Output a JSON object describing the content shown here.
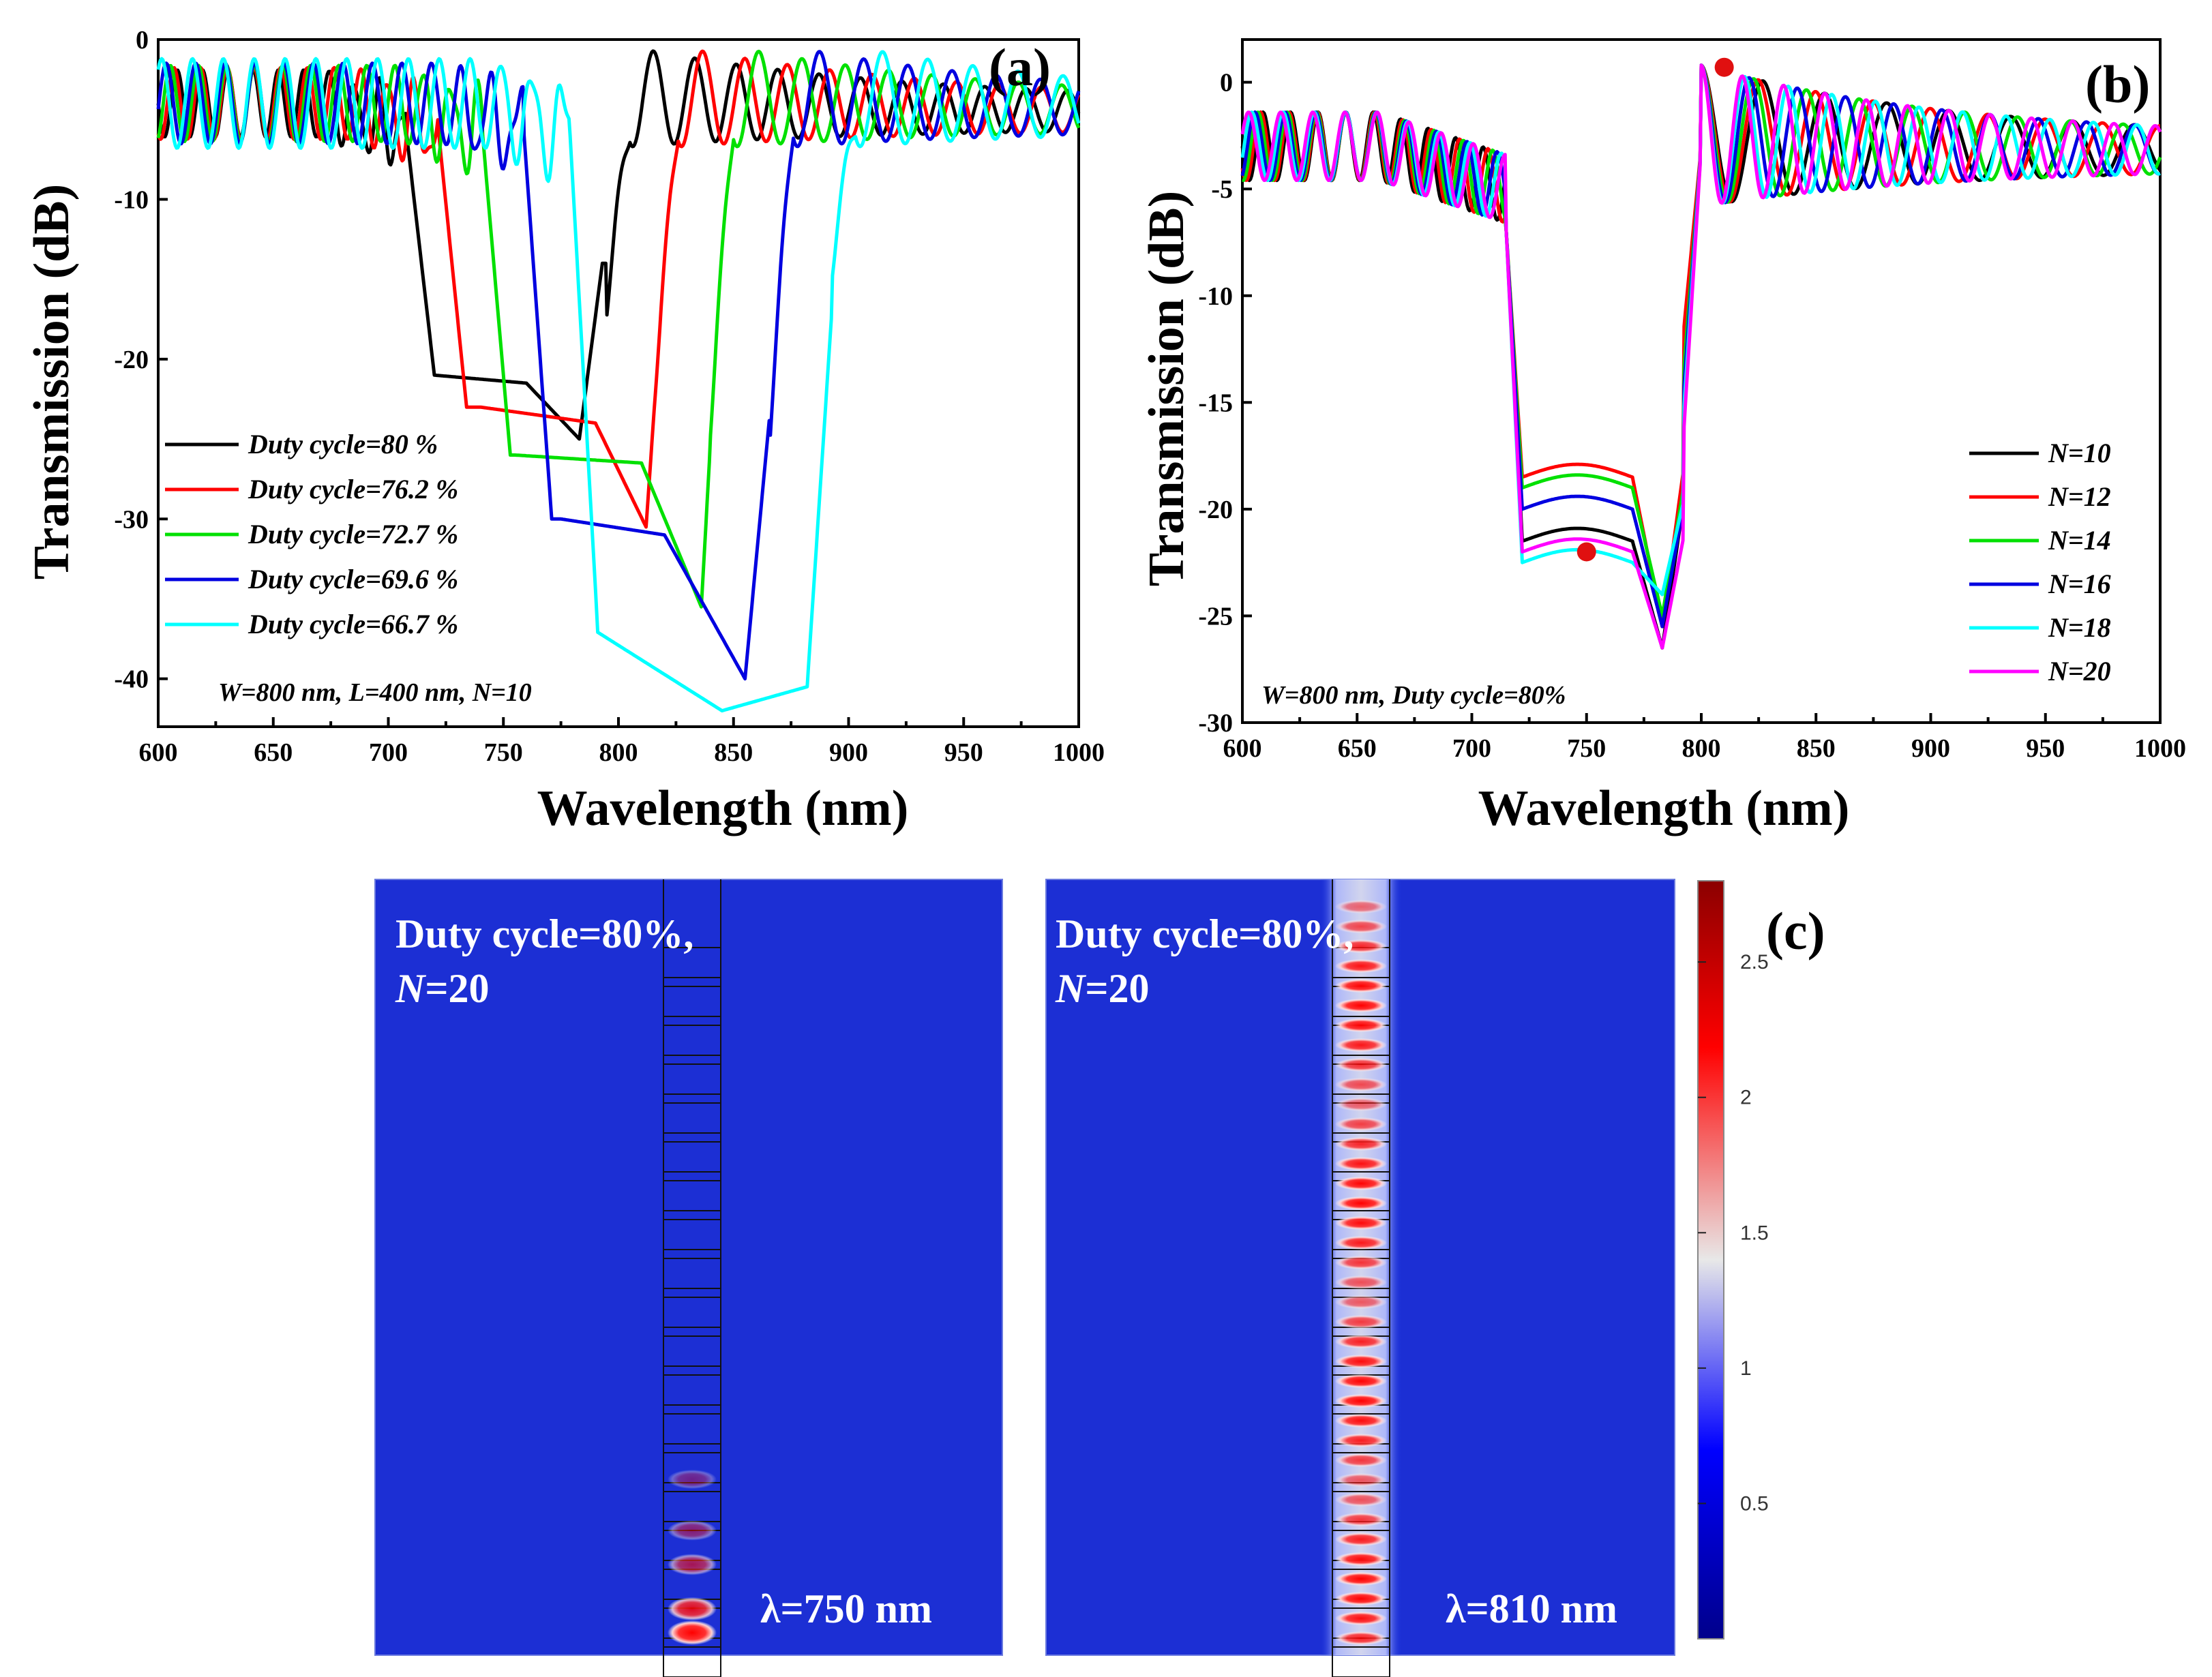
{
  "chart_data": [
    {
      "type": "line",
      "panel_label": "(a)",
      "xlabel": "Wavelength (nm)",
      "ylabel": "Transmission (dB)",
      "xlim": [
        600,
        1000
      ],
      "ylim": [
        -43,
        0
      ],
      "xticks": [
        600,
        650,
        700,
        750,
        800,
        850,
        900,
        950,
        1000
      ],
      "yticks": [
        0,
        -10,
        -20,
        -30,
        -40
      ],
      "annotation": "W=800 nm, L=400 nm, N=10",
      "legend_position": "middle-left",
      "series": [
        {
          "name": "Duty cycle=80 %",
          "color": "#000000",
          "edge_left": 712,
          "edge_right": 797,
          "floor": [
            [
              720,
              -21
            ],
            [
              760,
              -21.5
            ],
            [
              783,
              -25
            ],
            [
              793,
              -14
            ]
          ],
          "ripple_amp": 1.5
        },
        {
          "name": "Duty cycle=76.2 %",
          "color": "#ff0000",
          "edge_left": 726,
          "edge_right": 818,
          "floor": [
            [
              740,
              -23
            ],
            [
              790,
              -24
            ],
            [
              812,
              -30.5
            ],
            [
              818,
              -18
            ]
          ],
          "ripple_amp": 1.6
        },
        {
          "name": "Duty cycle=72.7 %",
          "color": "#00e000",
          "edge_left": 745,
          "edge_right": 842,
          "floor": [
            [
              755,
              -26
            ],
            [
              810,
              -26.5
            ],
            [
              836,
              -35.5
            ],
            [
              842,
              -20
            ]
          ],
          "ripple_amp": 1.7
        },
        {
          "name": "Duty cycle=69.6 %",
          "color": "#0000e0",
          "edge_left": 763,
          "edge_right": 868,
          "floor": [
            [
              775,
              -30
            ],
            [
              820,
              -31
            ],
            [
              855,
              -40
            ],
            [
              868,
              -20
            ]
          ],
          "ripple_amp": 1.8
        },
        {
          "name": "Duty cycle=66.7 %",
          "color": "#00ffff",
          "edge_left": 783,
          "edge_right": 895,
          "floor": [
            [
              790,
              -37
            ],
            [
              845,
              -42
            ],
            [
              882,
              -40.5
            ],
            [
              895,
              -12
            ]
          ],
          "ripple_amp": 2.0
        }
      ]
    },
    {
      "type": "line",
      "panel_label": "(b)",
      "xlabel": "Wavelength (nm)",
      "ylabel": "Transmission (dB)",
      "xlim": [
        600,
        1000
      ],
      "ylim": [
        -30,
        2
      ],
      "xticks": [
        600,
        650,
        700,
        750,
        800,
        850,
        900,
        950,
        1000
      ],
      "yticks": [
        0,
        -5,
        -10,
        -15,
        -20,
        -25,
        -30
      ],
      "annotation": "W=800 nm, Duty cycle=80%",
      "legend_position": "lower-right",
      "markers": [
        {
          "x": 750,
          "y": -22
        },
        {
          "x": 810,
          "y": 0.7
        }
      ],
      "series": [
        {
          "name": "N=10",
          "color": "#000000",
          "floor": -21.5,
          "dip": -26.5,
          "edge_right": -14,
          "period": 27
        },
        {
          "name": "N=12",
          "color": "#ff0000",
          "floor": -18.5,
          "dip": -25.5,
          "edge_right": -12,
          "period": 25
        },
        {
          "name": "N=14",
          "color": "#00e000",
          "floor": -19,
          "dip": -25,
          "edge_right": -14,
          "period": 23
        },
        {
          "name": "N=16",
          "color": "#0000e0",
          "floor": -20,
          "dip": -25.5,
          "edge_right": -15,
          "period": 21
        },
        {
          "name": "N=18",
          "color": "#00ffff",
          "floor": -22.5,
          "dip": -24,
          "edge_right": -16,
          "period": 19
        },
        {
          "name": "N=20",
          "color": "#ff00ff",
          "floor": -22,
          "dip": -26.5,
          "edge_right": -17,
          "period": 18
        }
      ]
    },
    {
      "type": "heatmap",
      "panel_label": "(c)",
      "maps": [
        {
          "line1": "Duty cycle=80%,",
          "n_label": "N",
          "n_value": "=20",
          "wavelength": "λ=750 nm"
        },
        {
          "line1": "Duty cycle=80%,",
          "n_label": "N",
          "n_value": "=20",
          "wavelength": "λ=810 nm"
        }
      ],
      "colorbar": {
        "ticks": [
          "2.5",
          "2",
          "1.5",
          "1",
          "0.5"
        ],
        "tick_values": [
          2.5,
          2,
          1.5,
          1,
          0.5
        ],
        "range": [
          0,
          2.8
        ]
      }
    }
  ]
}
